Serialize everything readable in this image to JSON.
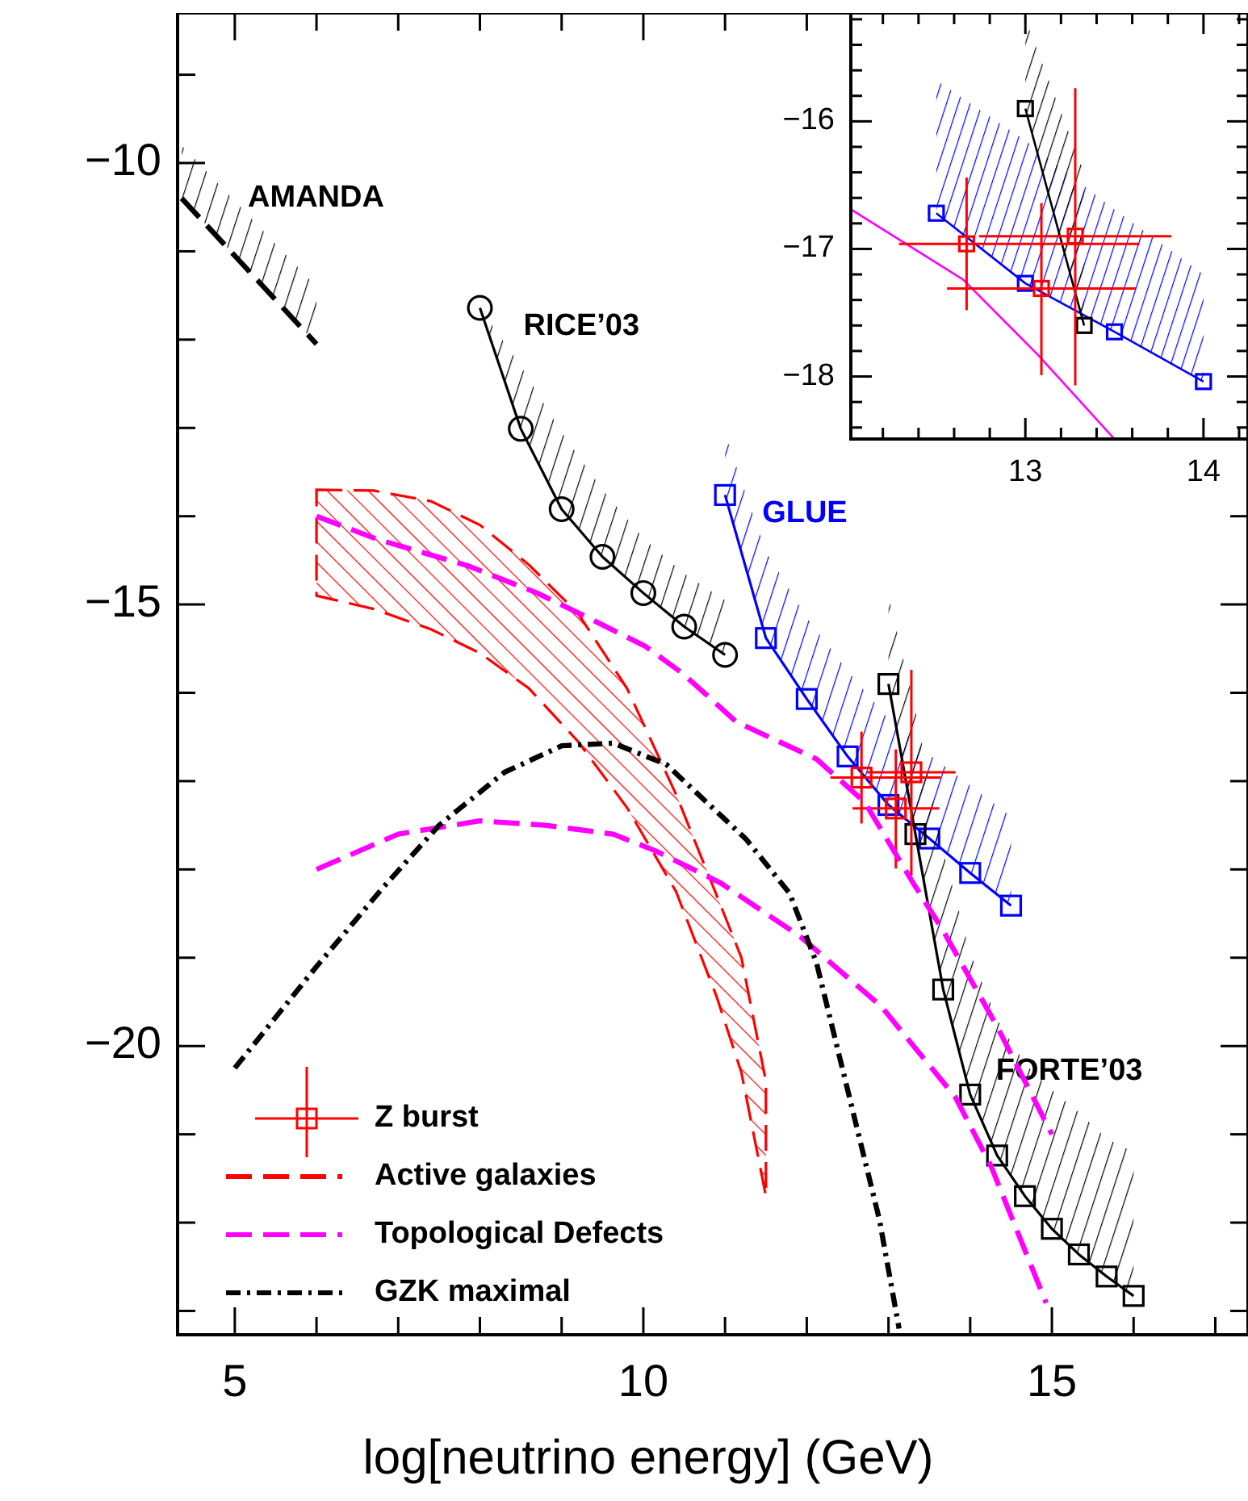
{
  "chart_data": [
    {
      "type": "line",
      "xlabel": "log[neutrino energy] (GeV)",
      "xlim": [
        4.3,
        17.4
      ],
      "ylim": [
        -23.27,
        -8.3
      ],
      "xticks": [
        5,
        {
          "value": 6,
          "label": null
        },
        {
          "value": 7,
          "label": null
        },
        {
          "value": 8,
          "label": null
        },
        {
          "value": 9,
          "label": null
        },
        10,
        {
          "value": 11,
          "label": null
        },
        {
          "value": 12,
          "label": null
        },
        {
          "value": 13,
          "label": null
        },
        {
          "value": 14,
          "label": null
        },
        15,
        {
          "value": 16,
          "label": null
        },
        {
          "value": 17,
          "label": null
        }
      ],
      "yticks": [
        {
          "value": -9,
          "label": null
        },
        {
          "value": -10,
          "label": "−10"
        },
        {
          "value": -11,
          "label": null
        },
        {
          "value": -12,
          "label": null
        },
        {
          "value": -13,
          "label": null
        },
        {
          "value": -14,
          "label": null
        },
        {
          "value": -15,
          "label": "−15"
        },
        {
          "value": -16,
          "label": null
        },
        {
          "value": -17,
          "label": null
        },
        {
          "value": -18,
          "label": null
        },
        {
          "value": -19,
          "label": null
        },
        {
          "value": -20,
          "label": "−20"
        },
        {
          "value": -21,
          "label": null
        },
        {
          "value": -22,
          "label": null
        },
        {
          "value": -23,
          "label": null
        }
      ],
      "legend": "bottom left",
      "series": [
        {
          "name": "AMANDA",
          "color": "#000000",
          "line_style": "dashed",
          "marker": "none",
          "x": [
            4.35,
            6.0
          ],
          "values": [
            -10.4,
            -12.05
          ],
          "lower": [
            -10.4,
            -12.05
          ],
          "upper": [
            -9.8,
            -11.4
          ]
        },
        {
          "name": "RICE’03",
          "color": "#000000",
          "line_style": "solid",
          "marker": "circle",
          "x": [
            8,
            8.5,
            9,
            9.5,
            10,
            10.5,
            11
          ],
          "values": [
            -11.64,
            -13.01,
            -13.92,
            -14.46,
            -14.87,
            -15.25,
            -15.57
          ],
          "lower": [
            -11.64,
            -13.01,
            -13.92,
            -14.46,
            -14.87,
            -15.25,
            -15.57
          ],
          "upper": [
            -11.64,
            -12.3,
            -13.05,
            -13.7,
            -14.25,
            -14.65,
            -14.95
          ]
        },
        {
          "name": "GLUE",
          "color": "#0000ff",
          "line_style": "solid",
          "marker": "square",
          "x": [
            11,
            11.5,
            12,
            12.5,
            13,
            13.5,
            14,
            14.5
          ],
          "values": [
            -13.76,
            -15.38,
            -16.07,
            -16.72,
            -17.27,
            -17.65,
            -18.04,
            -18.41
          ],
          "lower": [
            -13.76,
            -15.38,
            -16.07,
            -16.72,
            -17.27,
            -17.65,
            -18.04,
            -18.41
          ],
          "upper": [
            -13.07,
            -14.4,
            -15.15,
            -15.75,
            -16.3,
            -16.7,
            -17.05,
            -17.4
          ]
        },
        {
          "name": "FORTE’03",
          "color": "#000000",
          "line_style": "solid",
          "marker": "square",
          "x": [
            13,
            13.33,
            13.67,
            14,
            14.33,
            14.67,
            15,
            15.33,
            15.67,
            16
          ],
          "values": [
            -15.9,
            -17.6,
            -19.36,
            -20.55,
            -21.24,
            -21.7,
            -22.07,
            -22.36,
            -22.61,
            -22.83
          ],
          "lower": [
            -15.9,
            -17.6,
            -19.36,
            -20.55,
            -21.24,
            -21.7,
            -22.07,
            -22.36,
            -22.61,
            -22.83
          ],
          "upper": [
            -14.9,
            -16.2,
            -17.8,
            -18.95,
            -19.7,
            -20.2,
            -20.5,
            -20.75,
            -21.05,
            -21.2
          ]
        },
        {
          "type": "scatter",
          "name": "Z burst",
          "color": "#ff0000",
          "marker": "square",
          "x": [
            12.67,
            13.09,
            13.28
          ],
          "values": [
            -16.96,
            -17.31,
            -16.9
          ],
          "errors": [
            [
              -17.48,
              -16.44
            ],
            [
              -17.99,
              -16.64
            ],
            [
              -18.07,
              -15.74
            ]
          ],
          "xerrors": [
            [
              12.29,
              13.64
            ],
            [
              12.56,
              13.62
            ],
            [
              12.74,
              13.82
            ]
          ]
        },
        {
          "name": "Active galaxies",
          "color": "#ff0000",
          "line_style": "dashed",
          "marker": "none",
          "x": [
            6,
            6.7,
            7.4,
            8,
            8.6,
            9.2,
            9.8,
            10.4,
            10.9,
            11.2,
            11.5
          ],
          "values": [
            null,
            null,
            null,
            null,
            null,
            null,
            null,
            null,
            null,
            null,
            null
          ],
          "lower": [
            -14.9,
            -15.05,
            -15.28,
            -15.55,
            -15.95,
            -16.55,
            -17.3,
            -18.25,
            -19.45,
            -20.3,
            -21.7
          ],
          "upper": [
            -13.7,
            -13.71,
            -13.83,
            -14.1,
            -14.55,
            -15.1,
            -15.95,
            -17.15,
            -18.3,
            -19.0,
            -20.4
          ]
        },
        {
          "name": "Topological Defects",
          "color": "#ff00ff",
          "line_style": "dashed",
          "marker": "none",
          "x": [
            6,
            6.74,
            7.85,
            8.7,
            9.37,
            10.02,
            10.48,
            11.14,
            12.12,
            12.71,
            13.3,
            13.66,
            14.33,
            15
          ],
          "values": [
            -14.0,
            -14.26,
            -14.56,
            -14.87,
            -15.17,
            -15.47,
            -15.78,
            -16.33,
            -16.75,
            -17.24,
            -18.15,
            -18.68,
            -19.78,
            -21.0
          ]
        },
        {
          "color": "#ff00ff",
          "line_style": "dashed",
          "marker": "none",
          "x": [
            6,
            7,
            8,
            8.8,
            9.63,
            10.15,
            10.94,
            11.92,
            12.91,
            13.82,
            14.25,
            14.93
          ],
          "values": [
            -18.0,
            -17.6,
            -17.45,
            -17.5,
            -17.6,
            -17.79,
            -18.15,
            -18.76,
            -19.55,
            -20.58,
            -21.35,
            -22.91
          ]
        },
        {
          "name": "GZK maximal",
          "color": "#000000",
          "line_style": "dashdot",
          "marker": "none",
          "x": [
            5,
            6,
            6.81,
            7.5,
            8.3,
            9,
            9.63,
            10.28,
            11.26,
            11.79,
            12.12,
            12.44,
            12.89,
            13.13
          ],
          "values": [
            -20.25,
            -19.1,
            -18.21,
            -17.5,
            -16.9,
            -16.6,
            -16.57,
            -16.81,
            -17.66,
            -18.27,
            -19.06,
            -20.27,
            -21.97,
            -23.2
          ]
        }
      ]
    },
    {
      "type": "line",
      "xlim": [
        12.02,
        14.25
      ],
      "ylim": [
        -18.49,
        -15.15
      ],
      "xticks": [
        {
          "value": 12.2,
          "label": null
        },
        {
          "value": 12.4,
          "label": null
        },
        {
          "value": 12.6,
          "label": null
        },
        {
          "value": 12.8,
          "label": null
        },
        13,
        {
          "value": 13.2,
          "label": null
        },
        {
          "value": 13.4,
          "label": null
        },
        {
          "value": 13.6,
          "label": null
        },
        {
          "value": 13.8,
          "label": null
        },
        14,
        {
          "value": 14.2,
          "label": null
        }
      ],
      "yticks": [
        {
          "value": -15.2,
          "label": null
        },
        {
          "value": -15.4,
          "label": null
        },
        {
          "value": -15.6,
          "label": null
        },
        {
          "value": -15.8,
          "label": null
        },
        {
          "value": -16,
          "label": "−16"
        },
        {
          "value": -16.2,
          "label": null
        },
        {
          "value": -16.4,
          "label": null
        },
        {
          "value": -16.6,
          "label": null
        },
        {
          "value": -16.8,
          "label": null
        },
        {
          "value": -17,
          "label": "−17"
        },
        {
          "value": -17.2,
          "label": null
        },
        {
          "value": -17.4,
          "label": null
        },
        {
          "value": -17.6,
          "label": null
        },
        {
          "value": -17.8,
          "label": null
        },
        {
          "value": -18,
          "label": "−18"
        },
        {
          "value": -18.2,
          "label": null
        },
        {
          "value": -18.4,
          "label": null
        }
      ],
      "series": [
        {
          "color": "#0000ff",
          "line_style": "solid",
          "marker": "square",
          "x": [
            12.5,
            13,
            13.5,
            14
          ],
          "values": [
            -16.72,
            -17.27,
            -17.65,
            -18.04
          ],
          "lower": [
            -16.72,
            -17.27,
            -17.65,
            -18.04
          ],
          "upper": [
            -15.68,
            -16.15,
            -16.69,
            -17.2
          ]
        },
        {
          "color": "#000000",
          "line_style": "solid",
          "marker": "square",
          "x": [
            13,
            13.33
          ],
          "values": [
            -15.9,
            -17.6
          ],
          "lower": [
            -15.9,
            -17.6
          ],
          "upper": [
            -15.2,
            -16.4
          ]
        },
        {
          "color": "#ff00ff",
          "line_style": "solid",
          "marker": "none",
          "x": [
            12.02,
            12.65,
            13.07,
            13.5
          ],
          "values": [
            -16.69,
            -17.24,
            -17.83,
            -18.49
          ]
        },
        {
          "type": "scatter",
          "color": "#ff0000",
          "marker": "square",
          "x": [
            12.67,
            13.09,
            13.28
          ],
          "values": [
            -16.96,
            -17.31,
            -16.9
          ],
          "errors": [
            [
              -17.48,
              -16.44
            ],
            [
              -17.99,
              -16.64
            ],
            [
              -18.07,
              -15.74
            ]
          ],
          "xerrors": [
            [
              12.29,
              13.64
            ],
            [
              12.56,
              13.62
            ],
            [
              12.74,
              13.82
            ]
          ]
        }
      ]
    }
  ]
}
